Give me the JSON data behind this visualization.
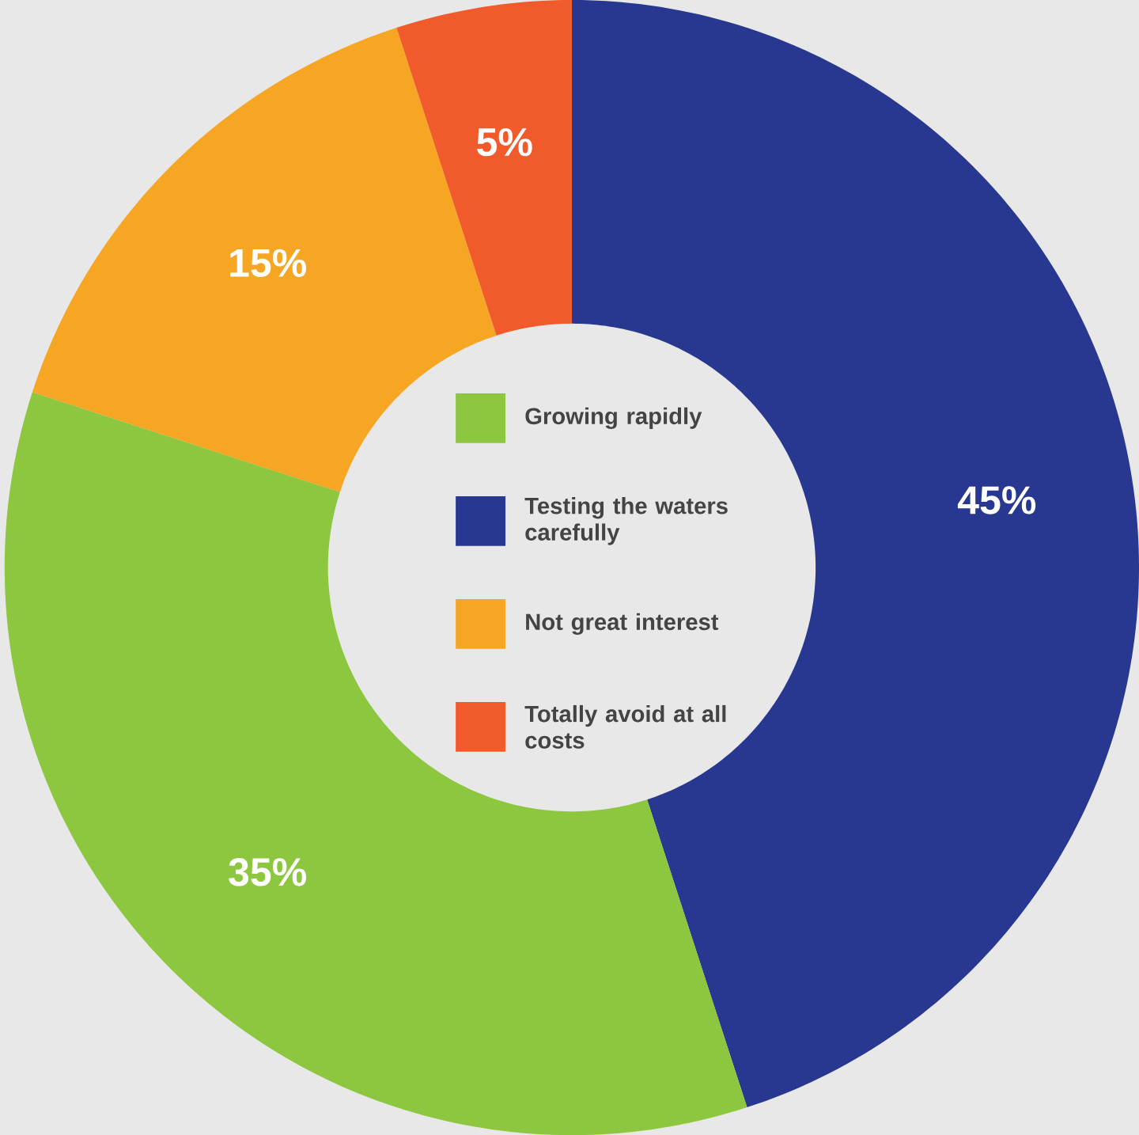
{
  "chart_data": {
    "type": "donut",
    "categories": [
      "Testing the waters carefully",
      "Growing rapidly",
      "Not great interest",
      "Totally avoid at all costs"
    ],
    "values": [
      45,
      35,
      15,
      5
    ],
    "colors": [
      "#283891",
      "#8dc63f",
      "#f6a623",
      "#f15a2b"
    ],
    "value_labels": [
      "45%",
      "35%",
      "15%",
      "5%"
    ],
    "legend": "center"
  }
}
